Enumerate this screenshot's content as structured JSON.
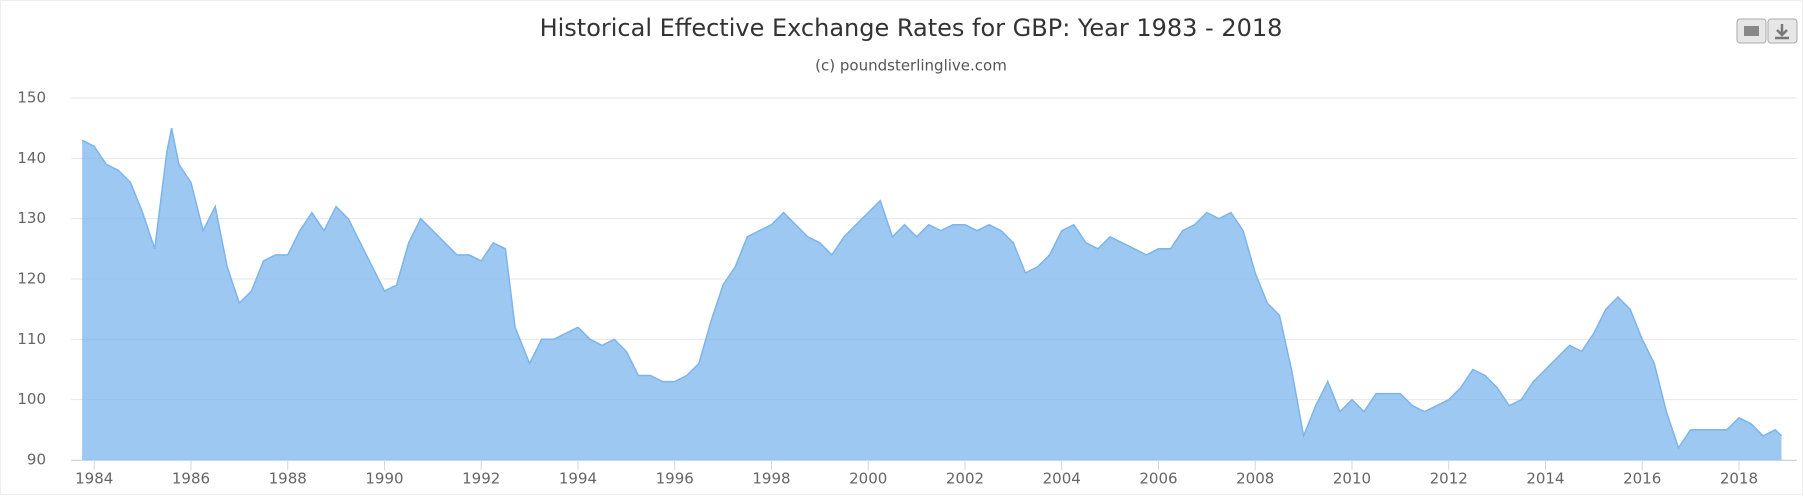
{
  "chart_data": {
    "type": "area",
    "title": "Historical Effective Exchange Rates for GBP: Year 1983 - 2018",
    "subtitle": "(c) poundsterlinglive.com",
    "color": "#7cb5ec",
    "grid": true,
    "xlim": [
      1983.52,
      2019.2
    ],
    "xticks": [
      1984,
      1986,
      1988,
      1990,
      1992,
      1994,
      1996,
      1998,
      2000,
      2002,
      2004,
      2006,
      2008,
      2010,
      2012,
      2014,
      2016,
      2018
    ],
    "ylim": [
      90,
      150
    ],
    "yticks": [
      90,
      100,
      110,
      120,
      130,
      140,
      150
    ],
    "x": [
      1983.75,
      1984.0,
      1984.25,
      1984.5,
      1984.75,
      1985.0,
      1985.25,
      1985.5,
      1985.6,
      1985.75,
      1986.0,
      1986.25,
      1986.5,
      1986.75,
      1987.0,
      1987.25,
      1987.5,
      1987.75,
      1988.0,
      1988.25,
      1988.5,
      1988.75,
      1989.0,
      1989.25,
      1989.5,
      1989.75,
      1990.0,
      1990.25,
      1990.5,
      1990.75,
      1991.0,
      1991.25,
      1991.5,
      1991.75,
      1992.0,
      1992.25,
      1992.5,
      1992.7,
      1993.0,
      1993.25,
      1993.5,
      1993.75,
      1994.0,
      1994.25,
      1994.5,
      1994.75,
      1995.0,
      1995.25,
      1995.5,
      1995.75,
      1996.0,
      1996.25,
      1996.5,
      1996.75,
      1997.0,
      1997.25,
      1997.5,
      1997.75,
      1998.0,
      1998.25,
      1998.5,
      1998.75,
      1999.0,
      1999.25,
      1999.5,
      1999.75,
      2000.0,
      2000.25,
      2000.5,
      2000.75,
      2001.0,
      2001.25,
      2001.5,
      2001.75,
      2002.0,
      2002.25,
      2002.5,
      2002.75,
      2003.0,
      2003.25,
      2003.5,
      2003.75,
      2004.0,
      2004.25,
      2004.5,
      2004.75,
      2005.0,
      2005.25,
      2005.5,
      2005.75,
      2006.0,
      2006.25,
      2006.5,
      2006.75,
      2007.0,
      2007.25,
      2007.5,
      2007.75,
      2008.0,
      2008.25,
      2008.5,
      2008.75,
      2009.0,
      2009.25,
      2009.5,
      2009.75,
      2010.0,
      2010.25,
      2010.5,
      2010.75,
      2011.0,
      2011.25,
      2011.5,
      2011.75,
      2012.0,
      2012.25,
      2012.5,
      2012.75,
      2013.0,
      2013.25,
      2013.5,
      2013.75,
      2014.0,
      2014.25,
      2014.5,
      2014.75,
      2015.0,
      2015.25,
      2015.5,
      2015.75,
      2016.0,
      2016.25,
      2016.5,
      2016.75,
      2017.0,
      2017.25,
      2017.5,
      2017.75,
      2018.0,
      2018.25,
      2018.5,
      2018.75,
      2018.88
    ],
    "values": [
      143,
      142,
      139,
      138,
      136,
      131,
      125,
      141,
      145,
      139,
      136,
      128,
      132,
      122,
      116,
      118,
      123,
      124,
      124,
      128,
      131,
      128,
      132,
      130,
      126,
      122,
      118,
      119,
      126,
      130,
      128,
      126,
      124,
      124,
      123,
      126,
      125,
      112,
      106,
      110,
      110,
      111,
      112,
      110,
      109,
      110,
      108,
      104,
      104,
      103,
      103,
      104,
      106,
      113,
      119,
      122,
      127,
      128,
      129,
      131,
      129,
      127,
      126,
      124,
      127,
      129,
      131,
      133,
      127,
      129,
      127,
      129,
      128,
      129,
      129,
      128,
      129,
      128,
      126,
      121,
      122,
      124,
      128,
      129,
      126,
      125,
      127,
      126,
      125,
      124,
      125,
      125,
      128,
      129,
      131,
      130,
      131,
      128,
      121,
      116,
      114,
      105,
      94,
      99,
      103,
      98,
      100,
      98,
      101,
      101,
      101,
      99,
      98,
      99,
      100,
      102,
      105,
      104,
      102,
      99,
      100,
      103,
      105,
      107,
      109,
      108,
      111,
      115,
      117,
      115,
      110,
      106,
      98,
      92,
      95,
      95,
      95,
      95,
      97,
      96,
      94,
      95,
      94
    ]
  }
}
